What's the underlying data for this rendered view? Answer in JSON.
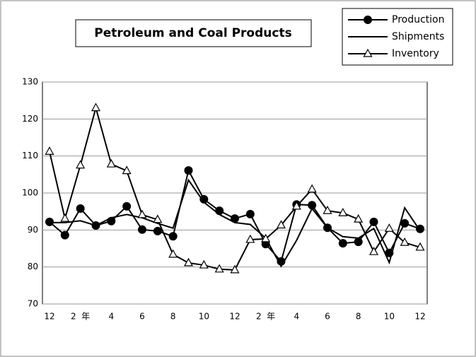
{
  "chart_data": {
    "type": "line",
    "title": "Petroleum and Coal Products",
    "categories": [
      "12",
      null,
      "2  年",
      null,
      "4",
      null,
      "6",
      null,
      "8",
      null,
      "10",
      null,
      "12",
      null,
      "2  年",
      null,
      "4",
      null,
      "6",
      null,
      "8",
      null,
      "10",
      null,
      "12"
    ],
    "series": [
      {
        "name": "Production",
        "color": "#000000",
        "marker": "circle",
        "values": [
          92.2,
          88.6,
          95.8,
          91.2,
          92.4,
          96.4,
          90.1,
          89.7,
          88.3,
          106.1,
          98.3,
          95.2,
          93.1,
          94.3,
          86.2,
          81.5,
          96.9,
          96.7,
          90.6,
          86.4,
          86.8,
          92.2,
          83.8,
          91.8,
          90.3
        ]
      },
      {
        "name": "Shipments",
        "color": "#000000",
        "marker": "none",
        "values": [
          92,
          92,
          92.5,
          91.2,
          93.3,
          94.2,
          93.3,
          91.8,
          90.5,
          103.5,
          97.5,
          94.2,
          92,
          91.5,
          87.8,
          80.2,
          87.2,
          95.8,
          90.6,
          88.2,
          87.8,
          90.4,
          81.2,
          96,
          89.8
        ]
      },
      {
        "name": "Inventory",
        "color": "#000000",
        "marker": "triangle",
        "values": [
          111.2,
          93.1,
          107.5,
          123,
          107.8,
          106,
          94.1,
          92.8,
          83.4,
          81.1,
          80.5,
          79.4,
          79.2,
          87.4,
          87.6,
          91.3,
          96.4,
          101,
          95.2,
          94.6,
          92.9,
          84.1,
          90.4,
          86.6,
          85.3
        ]
      }
    ],
    "ylim": [
      70,
      130
    ],
    "yticks": [
      70,
      80,
      90,
      100,
      110,
      120,
      130
    ],
    "grid": true
  }
}
